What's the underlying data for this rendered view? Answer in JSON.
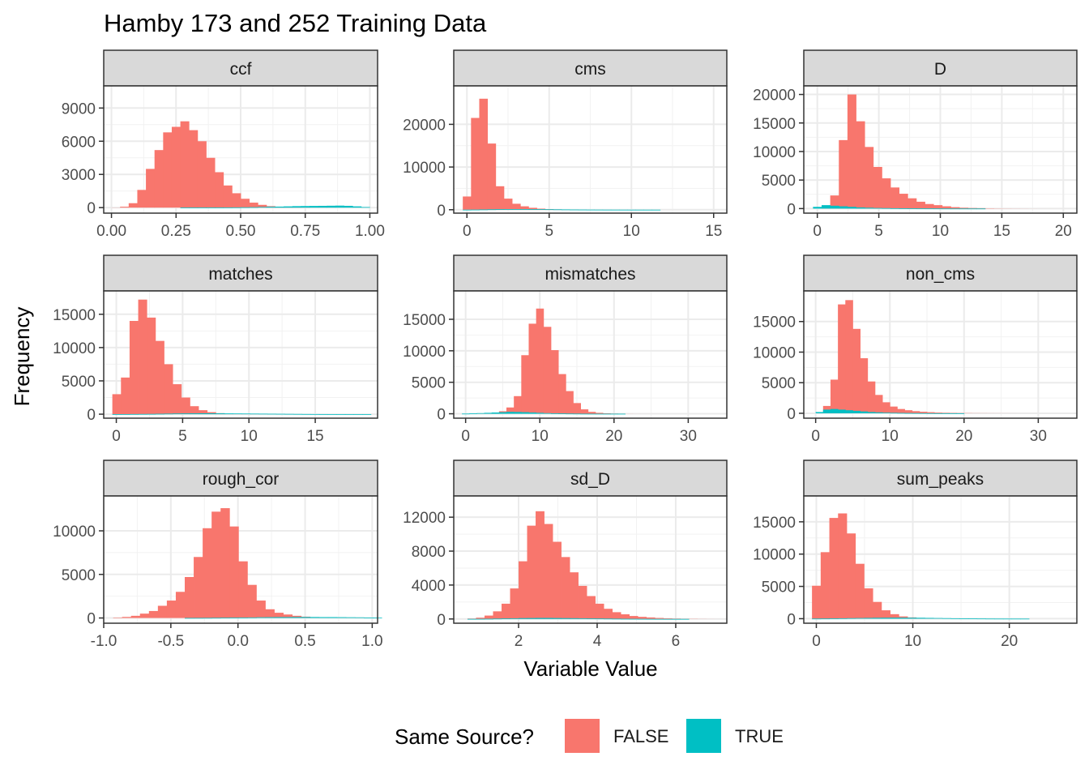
{
  "title": "Hamby 173 and 252 Training Data",
  "xlabel": "Variable Value",
  "ylabel": "Frequency",
  "legend": {
    "title": "Same Source?",
    "placement": "bottom",
    "items": [
      {
        "label": "FALSE",
        "color": "#F8766D"
      },
      {
        "label": "TRUE",
        "color": "#00BFC4"
      }
    ]
  },
  "colors": {
    "false": "#F8766D",
    "true": "#00BFC4",
    "strip_bg": "#D9D9D9",
    "grid": "#EBEBEB"
  },
  "chart_data": [
    {
      "type": "bar",
      "facet": "ccf",
      "xlim": [
        -0.03,
        1.03
      ],
      "ylim": [
        -500,
        11000
      ],
      "xticks": [
        0,
        0.25,
        0.5,
        0.75,
        1
      ],
      "xtick_labels": [
        "0.00",
        "0.25",
        "0.50",
        "0.75",
        "1.00"
      ],
      "yticks": [
        0,
        3000,
        6000,
        9000
      ],
      "ytick_labels": [
        "0",
        "3000",
        "6000",
        "9000"
      ],
      "bin_start": 0,
      "bin_width": 0.03333,
      "series": [
        {
          "name": "FALSE",
          "values": [
            10,
            80,
            400,
            1600,
            3500,
            5200,
            6800,
            7300,
            7800,
            7000,
            6000,
            4500,
            3200,
            2000,
            1300,
            800,
            450,
            250,
            130,
            70,
            40,
            20,
            10,
            5,
            5,
            3,
            2,
            1,
            1,
            0
          ]
        },
        {
          "name": "TRUE",
          "values": [
            0,
            0,
            0,
            0,
            0,
            0,
            0,
            0,
            2,
            3,
            5,
            8,
            10,
            15,
            20,
            30,
            40,
            60,
            80,
            90,
            110,
            130,
            140,
            150,
            160,
            170,
            180,
            160,
            110,
            50
          ]
        }
      ]
    },
    {
      "type": "bar",
      "facet": "cms",
      "xlim": [
        -0.8,
        15.8
      ],
      "ylim": [
        -800,
        29000
      ],
      "xticks": [
        0,
        5,
        10,
        15
      ],
      "xtick_labels": [
        "0",
        "5",
        "10",
        "15"
      ],
      "yticks": [
        0,
        10000,
        20000
      ],
      "ytick_labels": [
        "0",
        "10000",
        "20000"
      ],
      "bin_start": -0.25,
      "bin_width": 0.5,
      "series": [
        {
          "name": "FALSE",
          "values": [
            3100,
            21500,
            26000,
            15500,
            5500,
            2600,
            1400,
            800,
            450,
            250,
            140,
            80,
            40,
            20,
            10,
            5,
            3,
            2,
            1,
            1,
            0,
            0,
            0,
            0,
            0,
            0,
            0,
            0,
            0,
            0,
            0
          ]
        },
        {
          "name": "TRUE",
          "values": [
            10,
            30,
            60,
            90,
            120,
            140,
            150,
            150,
            140,
            120,
            100,
            80,
            60,
            40,
            30,
            20,
            15,
            10,
            8,
            5,
            3,
            2,
            1,
            1,
            0,
            0,
            0,
            0,
            0,
            0,
            0
          ]
        }
      ]
    },
    {
      "type": "bar",
      "facet": "D",
      "xlim": [
        -1.1,
        21.1
      ],
      "ylim": [
        -800,
        21500
      ],
      "xticks": [
        0,
        5,
        10,
        15,
        20
      ],
      "xtick_labels": [
        "0",
        "5",
        "10",
        "15",
        "20"
      ],
      "yticks": [
        0,
        5000,
        10000,
        15000,
        20000
      ],
      "ytick_labels": [
        "0",
        "5000",
        "10000",
        "15000",
        "20000"
      ],
      "bin_start": -0.35,
      "bin_width": 0.7,
      "series": [
        {
          "name": "FALSE",
          "values": [
            0,
            500,
            2300,
            12000,
            20000,
            15300,
            10800,
            7300,
            5300,
            3700,
            2600,
            1800,
            1200,
            800,
            600,
            400,
            250,
            150,
            100,
            70,
            50,
            30,
            20,
            15,
            10,
            5,
            3,
            2,
            1,
            1
          ]
        },
        {
          "name": "TRUE",
          "values": [
            300,
            600,
            500,
            400,
            300,
            200,
            150,
            100,
            80,
            60,
            40,
            30,
            20,
            15,
            10,
            5,
            3,
            2,
            1,
            1,
            0,
            0,
            0,
            0,
            0,
            0,
            0,
            0,
            0,
            0
          ]
        }
      ]
    },
    {
      "type": "bar",
      "facet": "matches",
      "xlim": [
        -0.95,
        19.7
      ],
      "ylim": [
        -600,
        18500
      ],
      "xticks": [
        0,
        5,
        10,
        15
      ],
      "xtick_labels": [
        "0",
        "5",
        "10",
        "15"
      ],
      "yticks": [
        0,
        5000,
        10000,
        15000
      ],
      "ytick_labels": [
        "0",
        "5000",
        "10000",
        "15000"
      ],
      "bin_start": -0.3,
      "bin_width": 0.65,
      "series": [
        {
          "name": "FALSE",
          "values": [
            3000,
            5500,
            14000,
            17200,
            14500,
            11000,
            7500,
            4500,
            2500,
            1200,
            600,
            300,
            150,
            70,
            30,
            15,
            8,
            4,
            2,
            1,
            1,
            0,
            0,
            0,
            0,
            0,
            0,
            0,
            0,
            0
          ]
        },
        {
          "name": "TRUE",
          "values": [
            5,
            10,
            20,
            30,
            40,
            60,
            80,
            100,
            110,
            120,
            130,
            130,
            120,
            110,
            100,
            90,
            80,
            70,
            60,
            50,
            40,
            30,
            20,
            15,
            10,
            5,
            3,
            2,
            1,
            1
          ]
        }
      ]
    },
    {
      "type": "bar",
      "facet": "mismatches",
      "xlim": [
        -1.6,
        35.2
      ],
      "ylim": [
        -700,
        19500
      ],
      "xticks": [
        0,
        10,
        20,
        30
      ],
      "xtick_labels": [
        "0",
        "10",
        "20",
        "30"
      ],
      "yticks": [
        0,
        5000,
        10000,
        15000
      ],
      "ytick_labels": [
        "0",
        "5000",
        "10000",
        "15000"
      ],
      "bin_start": -0.5,
      "bin_width": 1.0,
      "series": [
        {
          "name": "FALSE",
          "values": [
            0,
            5,
            10,
            30,
            100,
            400,
            1000,
            2800,
            9300,
            14300,
            16700,
            13800,
            10100,
            6300,
            3600,
            1700,
            700,
            300,
            150,
            70,
            30,
            15,
            8,
            4,
            2,
            1,
            1,
            0,
            0,
            0,
            0,
            0,
            0,
            0,
            0
          ]
        },
        {
          "name": "TRUE",
          "values": [
            20,
            50,
            100,
            150,
            200,
            250,
            300,
            280,
            250,
            200,
            150,
            100,
            70,
            50,
            30,
            20,
            10,
            5,
            3,
            2,
            1,
            1,
            0,
            0,
            0,
            0,
            0,
            0,
            0,
            0,
            0,
            0,
            0,
            0,
            0
          ]
        }
      ]
    },
    {
      "type": "bar",
      "facet": "non_cms",
      "xlim": [
        -1.6,
        35.2
      ],
      "ylim": [
        -800,
        20000
      ],
      "xticks": [
        0,
        10,
        20,
        30
      ],
      "xtick_labels": [
        "0",
        "10",
        "20",
        "30"
      ],
      "yticks": [
        0,
        5000,
        10000,
        15000
      ],
      "ytick_labels": [
        "0",
        "5000",
        "10000",
        "15000"
      ],
      "bin_start": 0,
      "bin_width": 1.0,
      "series": [
        {
          "name": "FALSE",
          "values": [
            0,
            1200,
            5500,
            17800,
            18500,
            13800,
            9000,
            5200,
            3000,
            1800,
            1100,
            700,
            500,
            350,
            250,
            180,
            120,
            80,
            60,
            40,
            30,
            20,
            15,
            10,
            8,
            5,
            3,
            2,
            1,
            1,
            0,
            0,
            0,
            0
          ]
        },
        {
          "name": "TRUE",
          "values": [
            200,
            600,
            700,
            600,
            500,
            400,
            300,
            200,
            150,
            100,
            80,
            60,
            40,
            30,
            20,
            10,
            5,
            3,
            2,
            1,
            0,
            0,
            0,
            0,
            0,
            0,
            0,
            0,
            0,
            0,
            0,
            0,
            0,
            0
          ]
        }
      ]
    },
    {
      "type": "bar",
      "facet": "rough_cor",
      "xlim": [
        -1.0,
        1.04
      ],
      "ylim": [
        -600,
        14000
      ],
      "xticks": [
        -1,
        -0.5,
        0,
        0.5,
        1
      ],
      "xtick_labels": [
        "-1.0",
        "-0.5",
        "0.0",
        "0.5",
        "1.0"
      ],
      "yticks": [
        0,
        5000,
        10000
      ],
      "ytick_labels": [
        "0",
        "5000",
        "10000"
      ],
      "bin_start": -0.93,
      "bin_width": 0.0667,
      "series": [
        {
          "name": "FALSE",
          "values": [
            50,
            120,
            250,
            500,
            800,
            1400,
            2000,
            3000,
            4700,
            7000,
            10300,
            12200,
            12600,
            10500,
            6500,
            3800,
            2000,
            1000,
            600,
            400,
            250,
            150,
            100,
            70,
            50,
            30,
            20,
            10,
            5,
            2
          ]
        },
        {
          "name": "TRUE",
          "values": [
            0,
            0,
            0,
            0,
            0,
            0,
            0,
            0,
            2,
            5,
            10,
            20,
            30,
            40,
            50,
            60,
            80,
            90,
            100,
            100,
            110,
            110,
            110,
            100,
            100,
            90,
            80,
            70,
            50,
            30
          ]
        }
      ]
    },
    {
      "type": "bar",
      "facet": "sd_D",
      "xlim": [
        0.35,
        7.3
      ],
      "ylim": [
        -500,
        14500
      ],
      "xticks": [
        2,
        4,
        6
      ],
      "xtick_labels": [
        "2",
        "4",
        "6"
      ],
      "yticks": [
        0,
        4000,
        8000,
        12000
      ],
      "ytick_labels": [
        "0",
        "4000",
        "8000",
        "12000"
      ],
      "bin_start": 0.7,
      "bin_width": 0.2167,
      "series": [
        {
          "name": "FALSE",
          "values": [
            50,
            150,
            400,
            900,
            1800,
            3600,
            6800,
            11000,
            12700,
            11200,
            9100,
            7300,
            5500,
            3900,
            2700,
            1800,
            1200,
            800,
            550,
            350,
            250,
            180,
            120,
            80,
            50,
            30,
            20,
            10,
            5,
            2
          ]
        },
        {
          "name": "TRUE",
          "values": [
            5,
            10,
            20,
            40,
            60,
            80,
            100,
            110,
            120,
            120,
            110,
            100,
            90,
            80,
            60,
            50,
            40,
            30,
            20,
            15,
            10,
            5,
            3,
            2,
            1,
            1,
            0,
            0,
            0,
            0
          ]
        }
      ]
    },
    {
      "type": "bar",
      "facet": "sum_peaks",
      "xlim": [
        -1.3,
        27.0
      ],
      "ylim": [
        -700,
        19000
      ],
      "xticks": [
        0,
        10,
        20
      ],
      "xtick_labels": [
        "0",
        "10",
        "20"
      ],
      "yticks": [
        0,
        5000,
        10000,
        15000
      ],
      "ytick_labels": [
        "0",
        "5000",
        "10000",
        "15000"
      ],
      "bin_start": -0.45,
      "bin_width": 0.9,
      "series": [
        {
          "name": "FALSE",
          "values": [
            5100,
            10300,
            15600,
            16300,
            13200,
            8500,
            4700,
            2600,
            1300,
            700,
            350,
            200,
            120,
            70,
            40,
            20,
            10,
            5,
            3,
            2,
            1,
            1,
            0,
            0,
            0,
            0,
            0,
            0,
            0,
            0
          ]
        },
        {
          "name": "TRUE",
          "values": [
            10,
            20,
            40,
            60,
            80,
            100,
            120,
            140,
            150,
            160,
            160,
            150,
            140,
            120,
            100,
            80,
            60,
            40,
            30,
            20,
            10,
            5,
            3,
            2,
            1,
            0,
            0,
            0,
            0,
            0
          ]
        }
      ]
    }
  ]
}
